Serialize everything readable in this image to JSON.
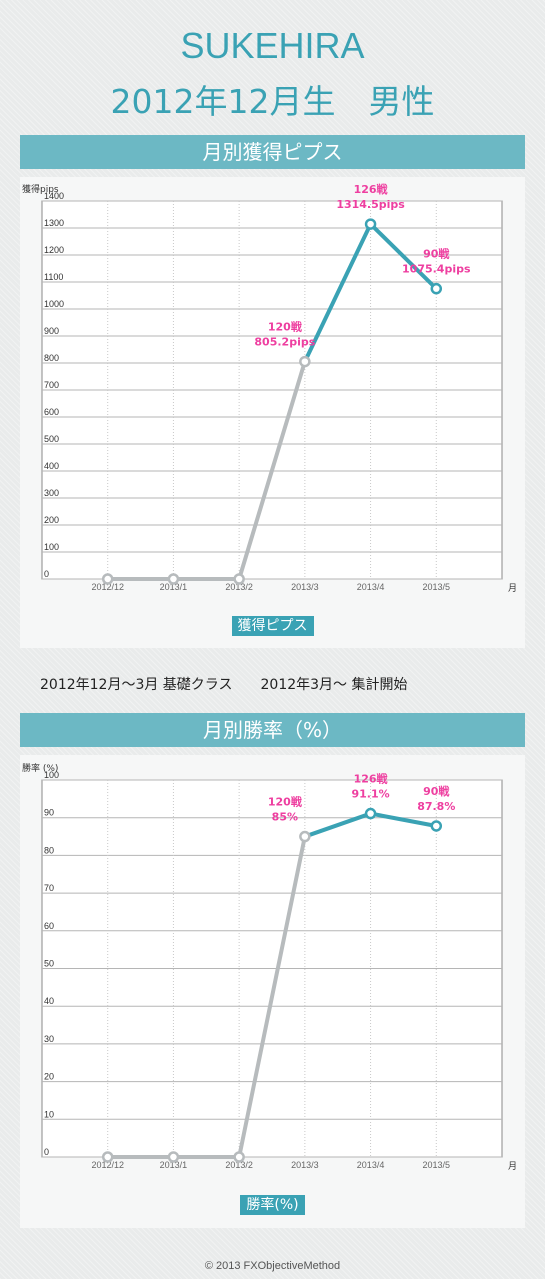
{
  "header": {
    "name": "SUKEHIRA",
    "subtitle": "2012年12月生　男性"
  },
  "note": "2012年12月〜3月 基礎クラス　　2012年3月〜 集計開始",
  "copyright": "© 2013 FXObjectiveMethod",
  "colors": {
    "accent": "#3aa2b4",
    "bar": "#6cb8c4",
    "label": "#ee3fa0",
    "pre_line": "#b7bbbd"
  },
  "chart_data": [
    {
      "type": "line",
      "title": "月別獲得ピプス",
      "ylabel": "獲得pips",
      "xlabel": "月",
      "legend": "獲得ピプス",
      "categories": [
        "2012/12",
        "2013/1",
        "2013/2",
        "2013/3",
        "2013/4",
        "2013/5"
      ],
      "values": [
        0,
        0,
        0,
        805.2,
        1314.5,
        1075.4
      ],
      "ylim": [
        0,
        1400
      ],
      "yticks": [
        0,
        100,
        200,
        300,
        400,
        500,
        600,
        700,
        800,
        900,
        1000,
        1100,
        1200,
        1300,
        1400
      ],
      "annotations": [
        {
          "index": 3,
          "line1": "120戦",
          "line2": "805.2pips"
        },
        {
          "index": 4,
          "line1": "126戦",
          "line2": "1314.5pips"
        },
        {
          "index": 5,
          "line1": "90戦",
          "line2": "1075.4pips"
        }
      ],
      "grid": true
    },
    {
      "type": "line",
      "title": "月別勝率（%）",
      "ylabel": "勝率 (%)",
      "xlabel": "月",
      "legend": "勝率(%)",
      "categories": [
        "2012/12",
        "2013/1",
        "2013/2",
        "2013/3",
        "2013/4",
        "2013/5"
      ],
      "values": [
        0,
        0,
        0,
        85,
        91.1,
        87.8
      ],
      "ylim": [
        0,
        100
      ],
      "yticks": [
        0,
        10,
        20,
        30,
        40,
        50,
        60,
        70,
        80,
        90,
        100
      ],
      "annotations": [
        {
          "index": 3,
          "line1": "120戦",
          "line2": "85%"
        },
        {
          "index": 4,
          "line1": "126戦",
          "line2": "91.1%"
        },
        {
          "index": 5,
          "line1": "90戦",
          "line2": "87.8%"
        }
      ],
      "grid": true
    }
  ]
}
